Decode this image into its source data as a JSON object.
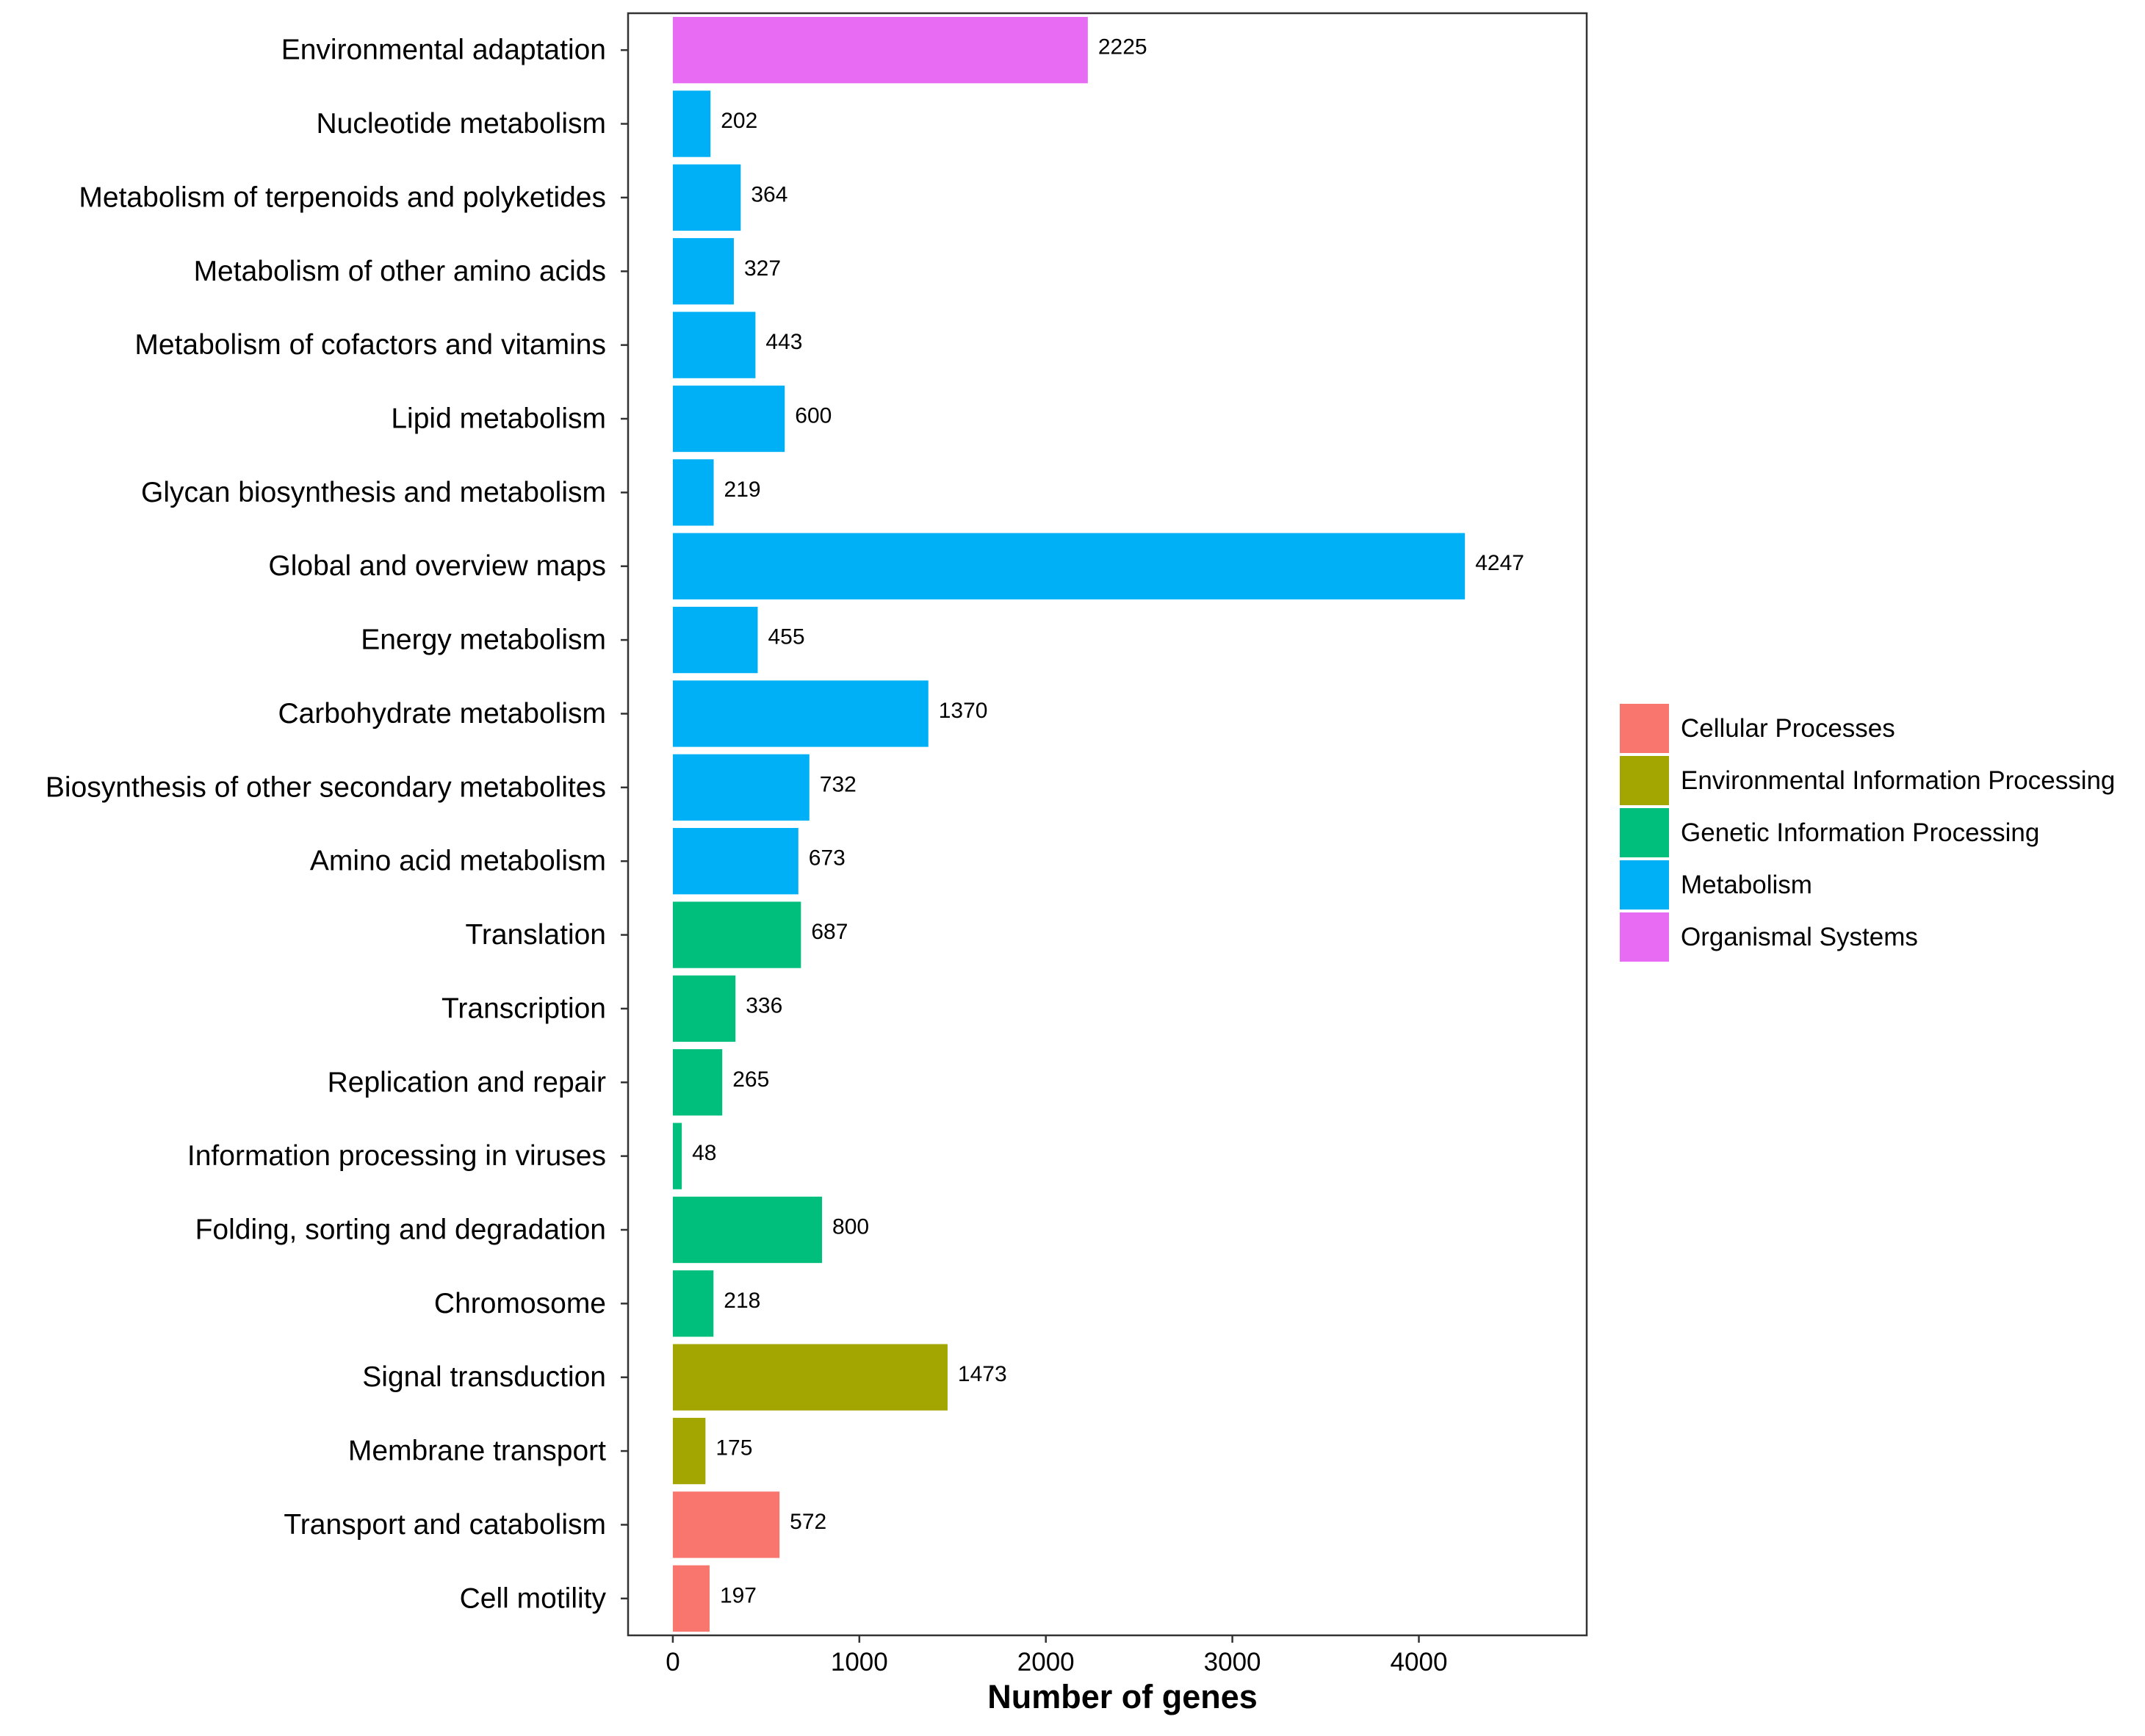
{
  "chart_data": {
    "type": "bar",
    "orientation": "horizontal",
    "title": "",
    "xlabel": "Number of genes",
    "ylabel": "",
    "xlim": [
      -240,
      4900
    ],
    "x_ticks": [
      0,
      1000,
      2000,
      3000,
      4000
    ],
    "grid": false,
    "legend_position": "right",
    "legend": [
      {
        "name": "Cellular Processes",
        "color": "#F8766D"
      },
      {
        "name": "Environmental Information Processing",
        "color": "#A3A500"
      },
      {
        "name": "Genetic Information Processing",
        "color": "#00BF7D"
      },
      {
        "name": "Metabolism",
        "color": "#00B0F6"
      },
      {
        "name": "Organismal Systems",
        "color": "#E76BF3"
      }
    ],
    "bars": [
      {
        "category": "Environmental adaptation",
        "value": 2225,
        "label": "2225",
        "group": "Organismal Systems"
      },
      {
        "category": "Nucleotide metabolism",
        "value": 202,
        "label": "202",
        "group": "Metabolism"
      },
      {
        "category": "Metabolism of terpenoids and polyketides",
        "value": 364,
        "label": "364",
        "group": "Metabolism"
      },
      {
        "category": "Metabolism of other amino acids",
        "value": 327,
        "label": "327",
        "group": "Metabolism"
      },
      {
        "category": "Metabolism of cofactors and vitamins",
        "value": 443,
        "label": "443",
        "group": "Metabolism"
      },
      {
        "category": "Lipid metabolism",
        "value": 600,
        "label": "600",
        "group": "Metabolism"
      },
      {
        "category": "Glycan biosynthesis and metabolism",
        "value": 219,
        "label": "219",
        "group": "Metabolism"
      },
      {
        "category": "Global and overview maps",
        "value": 4247,
        "label": "4247",
        "group": "Metabolism"
      },
      {
        "category": "Energy metabolism",
        "value": 455,
        "label": "455",
        "group": "Metabolism"
      },
      {
        "category": "Carbohydrate metabolism",
        "value": 1370,
        "label": "1370",
        "group": "Metabolism"
      },
      {
        "category": "Biosynthesis of other secondary metabolites",
        "value": 732,
        "label": "732",
        "group": "Metabolism"
      },
      {
        "category": "Amino acid metabolism",
        "value": 673,
        "label": "673",
        "group": "Metabolism"
      },
      {
        "category": "Translation",
        "value": 687,
        "label": "687",
        "group": "Genetic Information Processing"
      },
      {
        "category": "Transcription",
        "value": 336,
        "label": "336",
        "group": "Genetic Information Processing"
      },
      {
        "category": "Replication and repair",
        "value": 265,
        "label": "265",
        "group": "Genetic Information Processing"
      },
      {
        "category": "Information processing in viruses",
        "value": 48,
        "label": "48",
        "group": "Genetic Information Processing"
      },
      {
        "category": "Folding, sorting and degradation",
        "value": 800,
        "label": "800",
        "group": "Genetic Information Processing"
      },
      {
        "category": "Chromosome",
        "value": 218,
        "label": "218",
        "group": "Genetic Information Processing"
      },
      {
        "category": "Signal transduction",
        "value": 1473,
        "label": "1473",
        "group": "Environmental Information Processing"
      },
      {
        "category": "Membrane transport",
        "value": 175,
        "label": "175",
        "group": "Environmental Information Processing"
      },
      {
        "category": "Transport and catabolism",
        "value": 572,
        "label": "572",
        "group": "Cellular Processes"
      },
      {
        "category": "Cell motility",
        "value": 197,
        "label": "197",
        "group": "Cellular Processes"
      }
    ]
  }
}
